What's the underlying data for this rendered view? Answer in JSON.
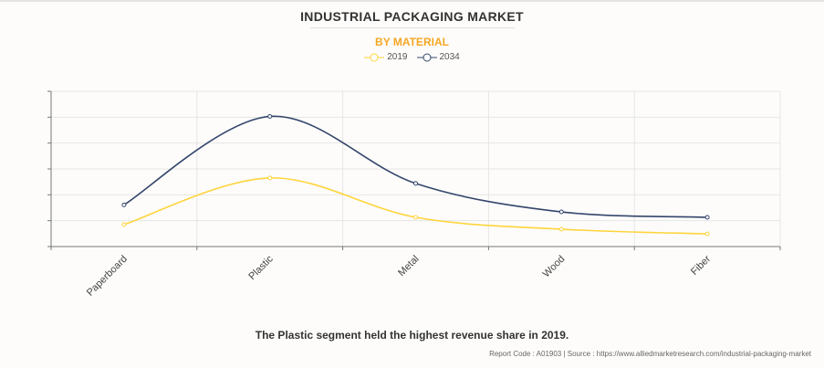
{
  "chart_data": {
    "type": "line",
    "title": "INDUSTRIAL PACKAGING MARKET",
    "subtitle": "BY MATERIAL",
    "categories": [
      "Paperboard",
      "Plastic",
      "Metal",
      "Wood",
      "Fiber"
    ],
    "series": [
      {
        "name": "2019",
        "color": "#ffd43b",
        "values": [
          0.85,
          2.65,
          1.13,
          0.67,
          0.49
        ]
      },
      {
        "name": "2034",
        "color": "#34466b",
        "values": [
          1.61,
          5.03,
          2.44,
          1.34,
          1.13
        ]
      }
    ],
    "ylim": [
      0,
      6
    ],
    "y_tick_labels_shown": false,
    "grid": true,
    "smooth": true,
    "legend_position": "top-center"
  },
  "caption": "The Plastic segment held the highest revenue share in 2019.",
  "footer": "Report Code : A01903  |  Source : https://www.alliedmarketresearch.com/industrial-packaging-market"
}
